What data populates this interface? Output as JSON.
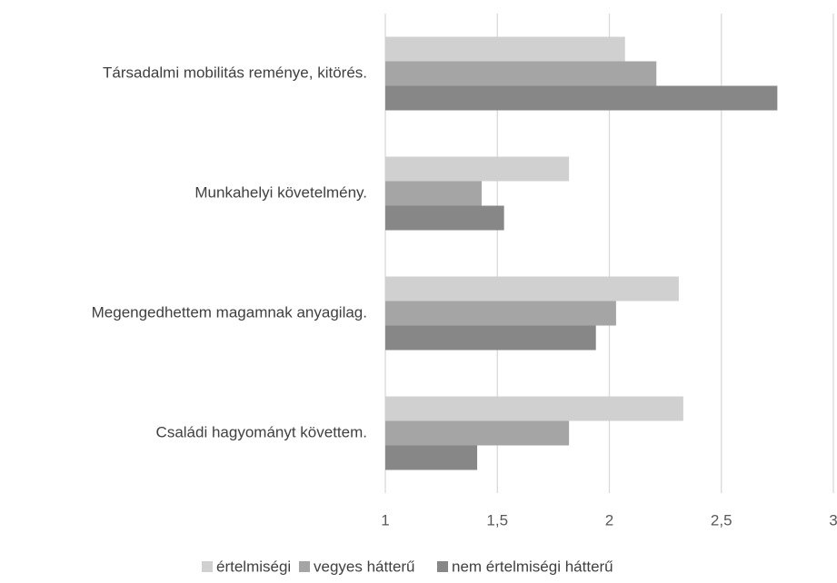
{
  "chart_data": {
    "type": "bar",
    "orientation": "horizontal",
    "categories": [
      "Társadalmi mobilitás reménye, kitörés.",
      "Munkahelyi követelmény.",
      "Megengedhettem magamnak anyagilag.",
      "Családi hagyományt követtem."
    ],
    "series": [
      {
        "name": "értelmiségi",
        "color": "#d0d0d0",
        "values": [
          2.07,
          1.82,
          2.31,
          2.33
        ]
      },
      {
        "name": "vegyes hátterű",
        "color": "#a5a5a5",
        "values": [
          2.21,
          1.43,
          2.03,
          1.82
        ]
      },
      {
        "name": "nem értelmiségi hátterű",
        "color": "#878787",
        "values": [
          2.75,
          1.53,
          1.94,
          1.41
        ]
      }
    ],
    "xlim": [
      1,
      3
    ],
    "xticks": [
      1,
      {
        "value": 1.5,
        "label": "1,5"
      },
      2,
      {
        "value": 2.5,
        "label": "2,5"
      },
      3
    ],
    "grid": true,
    "legend": "bottom"
  }
}
